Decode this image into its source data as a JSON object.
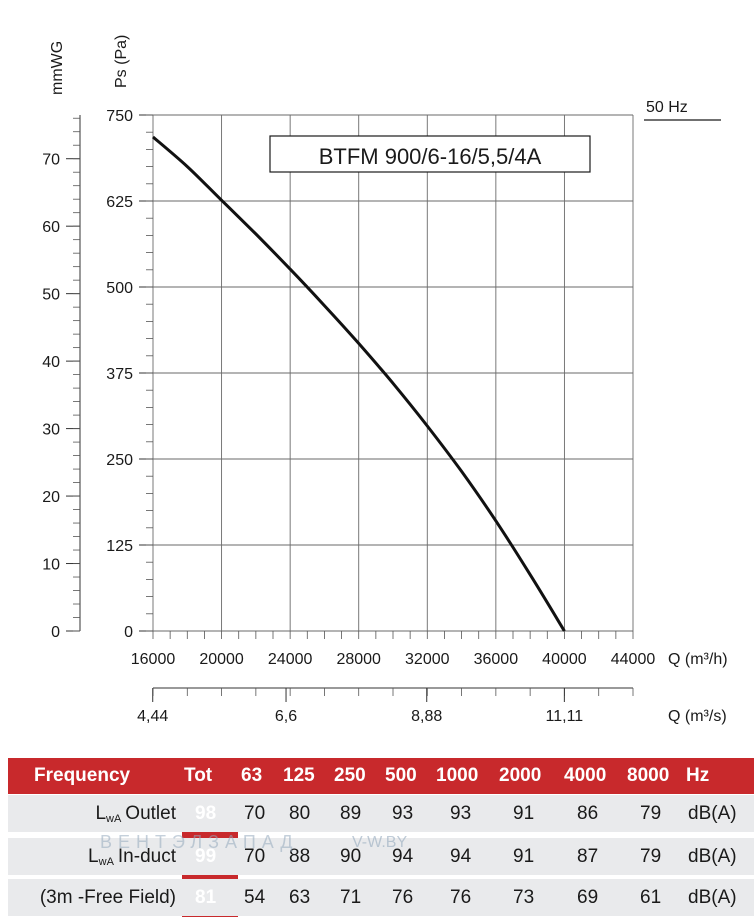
{
  "chart_data": {
    "type": "line",
    "title": "BTFM 900/6-16/5,5/4A",
    "frequency_label": "50 Hz",
    "ylabel_left": "mmWG",
    "ylabel_right": "Ps (Pa)",
    "xlabel": "Q (m³/h)",
    "xlabel_secondary": "Q (m³/s)",
    "xlim": [
      16000,
      44000
    ],
    "ylim": [
      0,
      750
    ],
    "x_ticks": [
      "16000",
      "20000",
      "24000",
      "28000",
      "32000",
      "36000",
      "40000",
      "44000"
    ],
    "y_ticks_pa": [
      "0",
      "125",
      "250",
      "375",
      "500",
      "625",
      "750"
    ],
    "y_ticks_mmwg": [
      "0",
      "10",
      "20",
      "30",
      "40",
      "50",
      "60",
      "70"
    ],
    "x_ticks_secondary": [
      "4,44",
      "6,6",
      "8,88",
      "11,11"
    ],
    "grid": true,
    "series": [
      {
        "x": [
          16000,
          18000,
          20000,
          22000,
          24000,
          26000,
          28000,
          30000,
          32000,
          34000,
          36000,
          38000,
          40000
        ],
        "y": [
          718,
          675,
          626,
          577,
          526,
          473,
          418,
          360,
          298,
          232,
          160,
          82,
          0
        ]
      }
    ]
  },
  "table": {
    "header": {
      "label": "Frequency",
      "tot": "Tot",
      "bands": [
        "63",
        "125",
        "250",
        "500",
        "1000",
        "2000",
        "4000",
        "8000"
      ],
      "unit": "Hz"
    },
    "rows": [
      {
        "prefix": "L",
        "sub": "wA",
        "name": "Outlet",
        "tot": "98",
        "values": [
          "70",
          "80",
          "89",
          "93",
          "93",
          "91",
          "86",
          "79"
        ],
        "unit": "dB(A)"
      },
      {
        "prefix": "L",
        "sub": "wA",
        "name": "In-duct",
        "tot": "99",
        "values": [
          "70",
          "88",
          "90",
          "94",
          "94",
          "91",
          "87",
          "79"
        ],
        "unit": "dB(A)"
      },
      {
        "prefix": "",
        "sub": "",
        "name": "(3m -Free Field)",
        "tot": "81",
        "values": [
          "54",
          "63",
          "71",
          "76",
          "76",
          "73",
          "69",
          "61"
        ],
        "unit": "dB(A)"
      }
    ]
  },
  "watermark": {
    "brand": "ВЕНТЭЛЗАПАД",
    "site": "V-W.BY"
  }
}
